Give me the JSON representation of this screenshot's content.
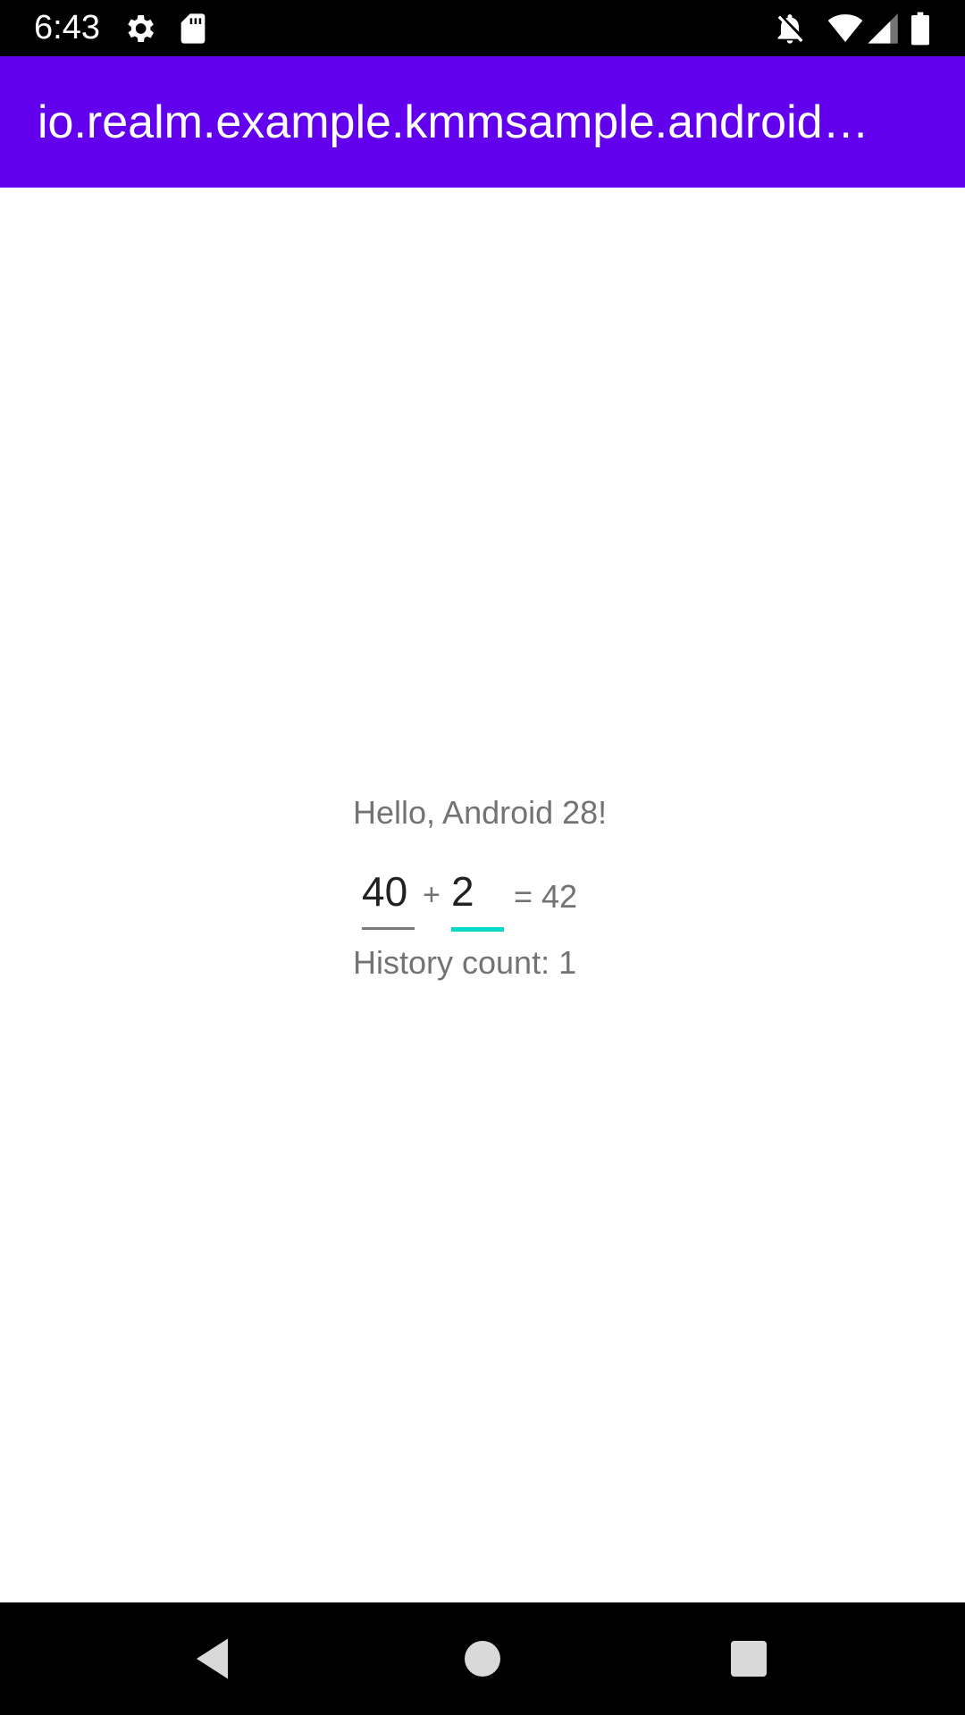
{
  "status_bar": {
    "time": "6:43",
    "icons": [
      "settings-icon",
      "sd-card-icon",
      "notifications-off-icon",
      "wifi-icon",
      "cell-signal-icon",
      "battery-icon"
    ]
  },
  "app_bar": {
    "title": "io.realm.example.kmmsample.androidApp",
    "background_color": "#6200ee"
  },
  "main": {
    "greeting": "Hello, Android 28!",
    "operand_a": "40",
    "plus": "+",
    "operand_b": "2",
    "result": "= 42",
    "history": "History count: 1",
    "accent_color": "#03dac5"
  },
  "nav_bar": {
    "buttons": [
      "back-icon",
      "home-icon",
      "recents-icon"
    ]
  }
}
